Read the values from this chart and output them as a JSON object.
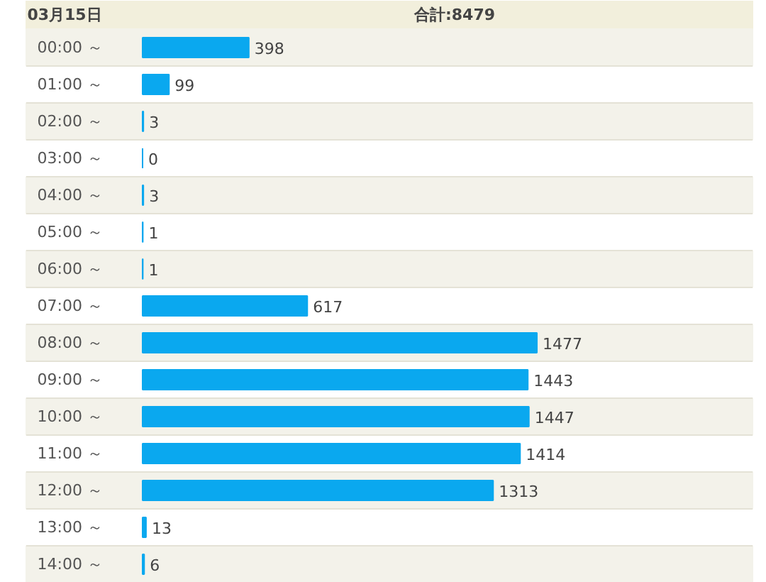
{
  "chart_data": {
    "type": "bar",
    "orientation": "horizontal",
    "title": "03月15日",
    "subtitle": "合計:8479",
    "categories": [
      "00:00 ～",
      "01:00 ～",
      "02:00 ～",
      "03:00 ～",
      "04:00 ～",
      "05:00 ～",
      "06:00 ～",
      "07:00 ～",
      "08:00 ～",
      "09:00 ～",
      "10:00 ～",
      "11:00 ～",
      "12:00 ～",
      "13:00 ～",
      "14:00 ～"
    ],
    "values": [
      398,
      99,
      3,
      0,
      3,
      1,
      1,
      617,
      1477,
      1443,
      1447,
      1414,
      1313,
      13,
      6
    ],
    "color": "#0aa8ef",
    "data_labels": true
  }
}
